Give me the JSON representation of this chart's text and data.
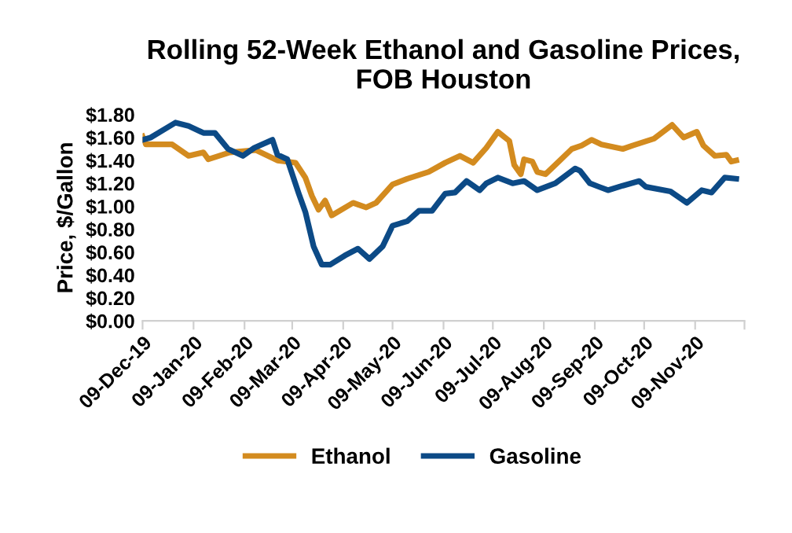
{
  "chart_data": {
    "type": "line",
    "title": "Rolling 52-Week Ethanol and Gasoline Prices,\nFOB Houston",
    "ylabel": "Price, $/Gallon",
    "xlim": [
      "2019-12-09",
      "2020-12-09"
    ],
    "xticks": [
      {
        "value": "2019-12-09",
        "label": "09-Dec-19"
      },
      {
        "value": "2020-01-09",
        "label": "09-Jan-20"
      },
      {
        "value": "2020-02-09",
        "label": "09-Feb-20"
      },
      {
        "value": "2020-03-09",
        "label": "09-Mar-20"
      },
      {
        "value": "2020-04-09",
        "label": "09-Apr-20"
      },
      {
        "value": "2020-05-09",
        "label": "09-May-20"
      },
      {
        "value": "2020-06-09",
        "label": "09-Jun-20"
      },
      {
        "value": "2020-07-09",
        "label": "09-Jul-20"
      },
      {
        "value": "2020-08-09",
        "label": "09-Aug-20"
      },
      {
        "value": "2020-09-09",
        "label": "09-Sep-20"
      },
      {
        "value": "2020-10-09",
        "label": "09-Oct-20"
      },
      {
        "value": "2020-11-09",
        "label": "09-Nov-20"
      },
      {
        "value": "2020-12-09",
        "label": null
      }
    ],
    "ylim": [
      0,
      1.8
    ],
    "yticks": [
      {
        "value": 0,
        "label": "$0.00"
      },
      {
        "value": 0.2,
        "label": "$0.20"
      },
      {
        "value": 0.4,
        "label": "$0.40"
      },
      {
        "value": 0.6,
        "label": "$0.60"
      },
      {
        "value": 0.8,
        "label": "$0.80"
      },
      {
        "value": 1.0,
        "label": "$1.00"
      },
      {
        "value": 1.2,
        "label": "$1.20"
      },
      {
        "value": 1.4,
        "label": "$1.40"
      },
      {
        "value": 1.6,
        "label": "$1.60"
      },
      {
        "value": 1.8,
        "label": "$1.80"
      }
    ],
    "grid": false,
    "legend": "bottom",
    "marker": "none",
    "line_style": "solid",
    "series": [
      {
        "name": "Ethanol",
        "color": "#d38b1f",
        "x": [
          "2019-12-09",
          "2019-12-11",
          "2019-12-27",
          "2020-01-06",
          "2020-01-15",
          "2020-01-18",
          "2020-01-31",
          "2020-02-16",
          "2020-02-29",
          "2020-03-11",
          "2020-03-17",
          "2020-03-21",
          "2020-03-25",
          "2020-03-29",
          "2020-04-02",
          "2020-04-15",
          "2020-04-23",
          "2020-04-29",
          "2020-05-09",
          "2020-05-18",
          "2020-05-31",
          "2020-06-10",
          "2020-06-19",
          "2020-06-27",
          "2020-07-05",
          "2020-07-12",
          "2020-07-19",
          "2020-07-22",
          "2020-07-26",
          "2020-07-28",
          "2020-08-02",
          "2020-08-05",
          "2020-08-10",
          "2020-08-18",
          "2020-08-26",
          "2020-09-01",
          "2020-09-07",
          "2020-09-13",
          "2020-09-26",
          "2020-10-02",
          "2020-10-15",
          "2020-10-26",
          "2020-11-02",
          "2020-11-10",
          "2020-11-14",
          "2020-11-21",
          "2020-11-28",
          "2020-12-01",
          "2020-12-04"
        ],
        "values": [
          1.61,
          1.54,
          1.54,
          1.44,
          1.47,
          1.41,
          1.47,
          1.49,
          1.4,
          1.38,
          1.25,
          1.09,
          0.97,
          1.05,
          0.92,
          1.03,
          0.99,
          1.03,
          1.19,
          1.24,
          1.3,
          1.38,
          1.44,
          1.38,
          1.51,
          1.65,
          1.57,
          1.36,
          1.28,
          1.41,
          1.39,
          1.3,
          1.28,
          1.39,
          1.5,
          1.53,
          1.58,
          1.54,
          1.5,
          1.53,
          1.59,
          1.71,
          1.6,
          1.65,
          1.53,
          1.44,
          1.45,
          1.39,
          1.4
        ]
      },
      {
        "name": "Gasoline",
        "color": "#0c4a86",
        "x": [
          "2019-12-09",
          "2019-12-14",
          "2019-12-29",
          "2020-01-06",
          "2020-01-15",
          "2020-01-22",
          "2020-01-30",
          "2020-02-08",
          "2020-02-15",
          "2020-02-26",
          "2020-02-29",
          "2020-03-06",
          "2020-03-13",
          "2020-03-17",
          "2020-03-22",
          "2020-03-27",
          "2020-04-01",
          "2020-04-10",
          "2020-04-18",
          "2020-04-25",
          "2020-05-03",
          "2020-05-09",
          "2020-05-18",
          "2020-05-25",
          "2020-06-02",
          "2020-06-10",
          "2020-06-16",
          "2020-06-23",
          "2020-07-01",
          "2020-07-05",
          "2020-07-12",
          "2020-07-21",
          "2020-07-28",
          "2020-08-05",
          "2020-08-16",
          "2020-08-28",
          "2020-08-31",
          "2020-09-06",
          "2020-09-17",
          "2020-09-26",
          "2020-10-06",
          "2020-10-10",
          "2020-10-25",
          "2020-11-04",
          "2020-11-13",
          "2020-11-19",
          "2020-11-27",
          "2020-12-04"
        ],
        "values": [
          1.58,
          1.6,
          1.73,
          1.7,
          1.64,
          1.64,
          1.5,
          1.44,
          1.51,
          1.58,
          1.45,
          1.41,
          1.11,
          0.95,
          0.65,
          0.49,
          0.49,
          0.57,
          0.63,
          0.54,
          0.65,
          0.83,
          0.87,
          0.96,
          0.96,
          1.11,
          1.12,
          1.22,
          1.14,
          1.2,
          1.25,
          1.2,
          1.22,
          1.14,
          1.2,
          1.33,
          1.31,
          1.2,
          1.14,
          1.18,
          1.22,
          1.17,
          1.13,
          1.03,
          1.14,
          1.12,
          1.25,
          1.24
        ]
      }
    ]
  }
}
